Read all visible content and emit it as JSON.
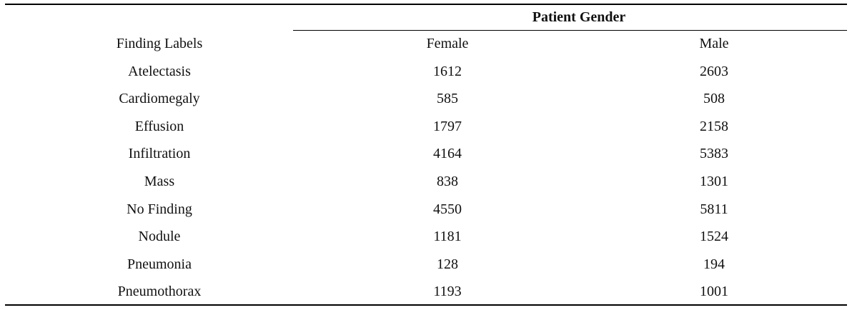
{
  "table": {
    "group_header": "Patient Gender",
    "columns": [
      "Finding Labels",
      "Female",
      "Male"
    ],
    "rows": [
      {
        "label": "Atelectasis",
        "female": "1612",
        "male": "2603"
      },
      {
        "label": "Cardiomegaly",
        "female": "585",
        "male": "508"
      },
      {
        "label": "Effusion",
        "female": "1797",
        "male": "2158"
      },
      {
        "label": "Infiltration",
        "female": "4164",
        "male": "5383"
      },
      {
        "label": "Mass",
        "female": "838",
        "male": "1301"
      },
      {
        "label": "No Finding",
        "female": "4550",
        "male": "5811"
      },
      {
        "label": "Nodule",
        "female": "1181",
        "male": "1524"
      },
      {
        "label": "Pneumonia",
        "female": "128",
        "male": "194"
      },
      {
        "label": "Pneumothorax",
        "female": "1193",
        "male": "1001"
      }
    ]
  }
}
